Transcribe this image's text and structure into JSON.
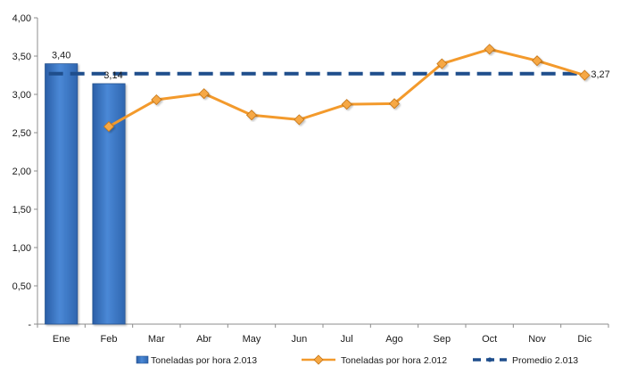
{
  "chart_data": {
    "type": "bar",
    "categories": [
      "Ene",
      "Feb",
      "Mar",
      "Abr",
      "May",
      "Jun",
      "Jul",
      "Ago",
      "Sep",
      "Oct",
      "Nov",
      "Dic"
    ],
    "ylim": [
      0,
      4
    ],
    "yticks": [
      0,
      0.5,
      1,
      1.5,
      2,
      2.5,
      3,
      3.5,
      4
    ],
    "ytick_labels": [
      "-",
      "0,50",
      "1,00",
      "1,50",
      "2,00",
      "2,50",
      "3,00",
      "3,50",
      "4,00"
    ],
    "grid": false,
    "legend": "bottom",
    "series": [
      {
        "name": "Toneladas por hora 2.013",
        "type": "bar",
        "color": "#3a74c4",
        "values": [
          3.4,
          3.14,
          null,
          null,
          null,
          null,
          null,
          null,
          null,
          null,
          null,
          null
        ],
        "labels": [
          "3,40",
          "3,14"
        ]
      },
      {
        "name": "Toneladas por hora 2.012",
        "type": "line",
        "color": "#f39a2c",
        "values": [
          null,
          2.58,
          2.93,
          3.01,
          2.73,
          2.67,
          2.87,
          2.88,
          3.4,
          3.59,
          3.44,
          3.25
        ]
      },
      {
        "name": "Promedio 2.013",
        "type": "line",
        "style": "dashed",
        "color": "#1f4e8c",
        "values": [
          3.27,
          3.27,
          3.27,
          3.27,
          3.27,
          3.27,
          3.27,
          3.27,
          3.27,
          3.27,
          3.27,
          3.27
        ],
        "end_label": "3,27"
      }
    ]
  }
}
